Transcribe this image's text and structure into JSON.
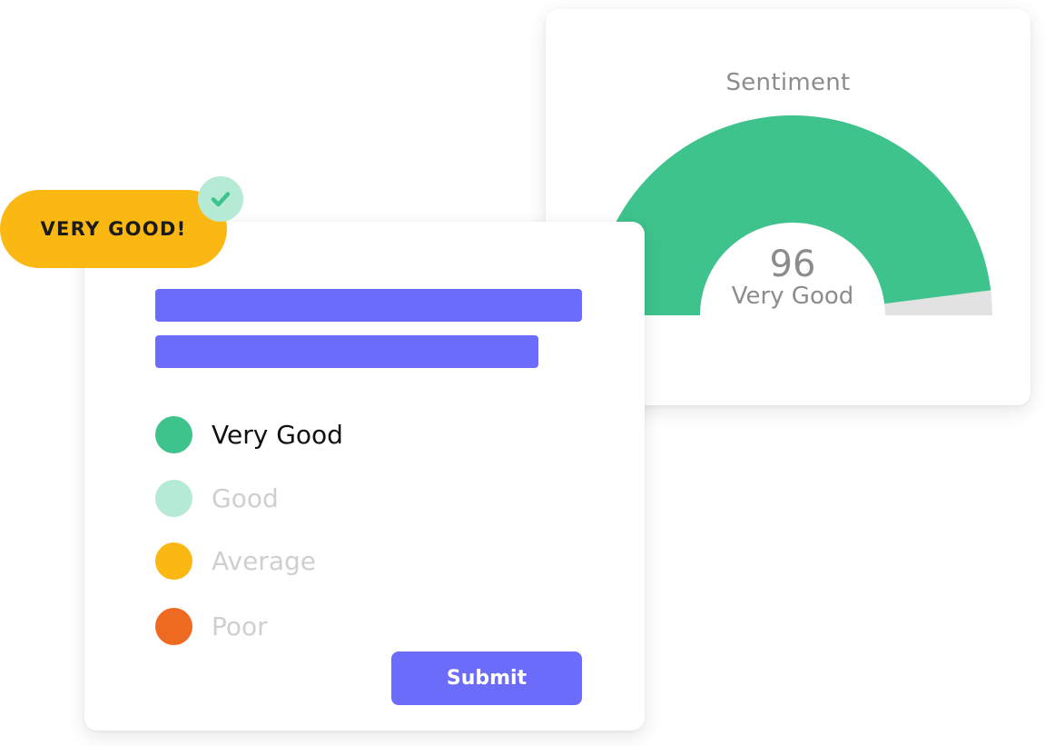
{
  "sentiment": {
    "title": "Sentiment",
    "score": "96",
    "label": "Very Good",
    "gauge_value": 96,
    "gauge_max": 100
  },
  "badge": {
    "text": "VERY GOOD!",
    "check_icon": "check-icon"
  },
  "survey": {
    "options": [
      {
        "label": "Very Good",
        "color": "#3fc38c",
        "selected": true
      },
      {
        "label": "Good",
        "color": "#b5ead5",
        "selected": false
      },
      {
        "label": "Average",
        "color": "#fcb812",
        "selected": false
      },
      {
        "label": "Poor",
        "color": "#ef6a21",
        "selected": false
      }
    ],
    "submit_label": "Submit"
  },
  "colors": {
    "accent": "#6c6cfa",
    "gauge_fill": "#3fc38c",
    "gauge_track": "#e2e2e2",
    "badge_bg": "#fcb812",
    "check_bg": "#b5ead5",
    "check_mark": "#3fc38c"
  }
}
